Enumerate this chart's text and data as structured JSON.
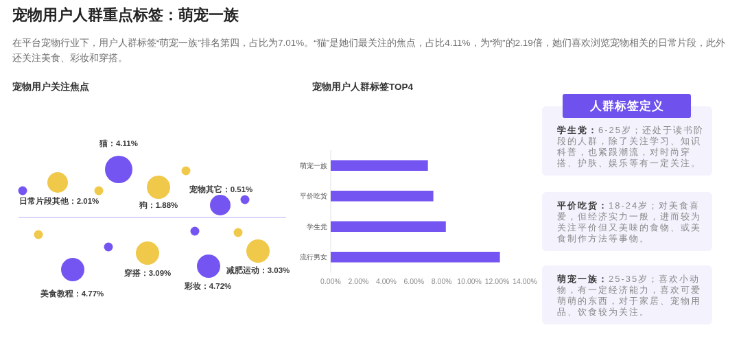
{
  "chart_data": [
    {
      "type": "other",
      "title": "宠物用户人群重点标签：萌宠一族",
      "subtitle": "在平台宠物行业下，用户人群标签“萌宠一族”排名第四，占比为7.01%。“猫”是她们最关注的焦点，占比4.11%，为“狗”的2.19倍，她们喜欢浏览宠物相关的日常片段，此外还关注美食、彩妆和穿搭。"
    },
    {
      "type": "other",
      "title": "宠物用户关注焦点",
      "categories": [
        "日常片段其他",
        "猫",
        "狗",
        "宠物其它",
        "美食教程",
        "穿搭",
        "彩妆",
        "减肥运动"
      ],
      "values": [
        2.01,
        4.11,
        1.88,
        0.51,
        4.77,
        3.09,
        4.72,
        3.03
      ],
      "value_labels": [
        "：2.01%",
        "：4.11%",
        "：1.88%",
        "：0.51%",
        "：4.77%",
        "：3.09%",
        "：4.72%",
        "：3.03%"
      ],
      "colors": [
        "#f0c84a",
        "#7455f2",
        "#f0c84a",
        "#7455f2",
        "#7455f2",
        "#f0c84a",
        "#7455f2",
        "#f0c84a"
      ]
    },
    {
      "type": "bar",
      "orientation": "horizontal",
      "title": "宠物用户人群标签TOP4",
      "categories": [
        "萌宠一族",
        "平价吃货",
        "学生党",
        "流行男女"
      ],
      "values": [
        7.01,
        7.4,
        8.3,
        12.2
      ],
      "color": "#7455f2",
      "xlim": [
        0,
        14
      ],
      "xticks": [
        {
          "value": 0,
          "label": "0.00%"
        },
        {
          "value": 2,
          "label": "2.00%"
        },
        {
          "value": 4,
          "label": "4.00%"
        },
        {
          "value": 6,
          "label": "6.00%"
        },
        {
          "value": 8,
          "label": "8.00%"
        },
        {
          "value": 10,
          "label": "10.00%"
        },
        {
          "value": 12,
          "label": "12.00%"
        },
        {
          "value": 14,
          "label": "14.00%"
        }
      ]
    },
    {
      "type": "other",
      "title": "人群标签定义",
      "annotations": [
        "**学生党：**6-25岁；还处于读书阶段的人群，除了关注学习、知识科普，也紧跟潮流，对时尚穿搭、护肤、娱乐等有一定关注。",
        "**平价吃货：**18-24岁；对美食喜爱，但经济实力一般，进而较为关注平价但又美味的食物、或美食制作方法等事物。",
        "**萌宠一族：**25-35岁；喜欢小动物，有一定经济能力，喜欢可爱萌萌的东西，对于家居、宠物用品、饮食较为关注。"
      ]
    }
  ]
}
